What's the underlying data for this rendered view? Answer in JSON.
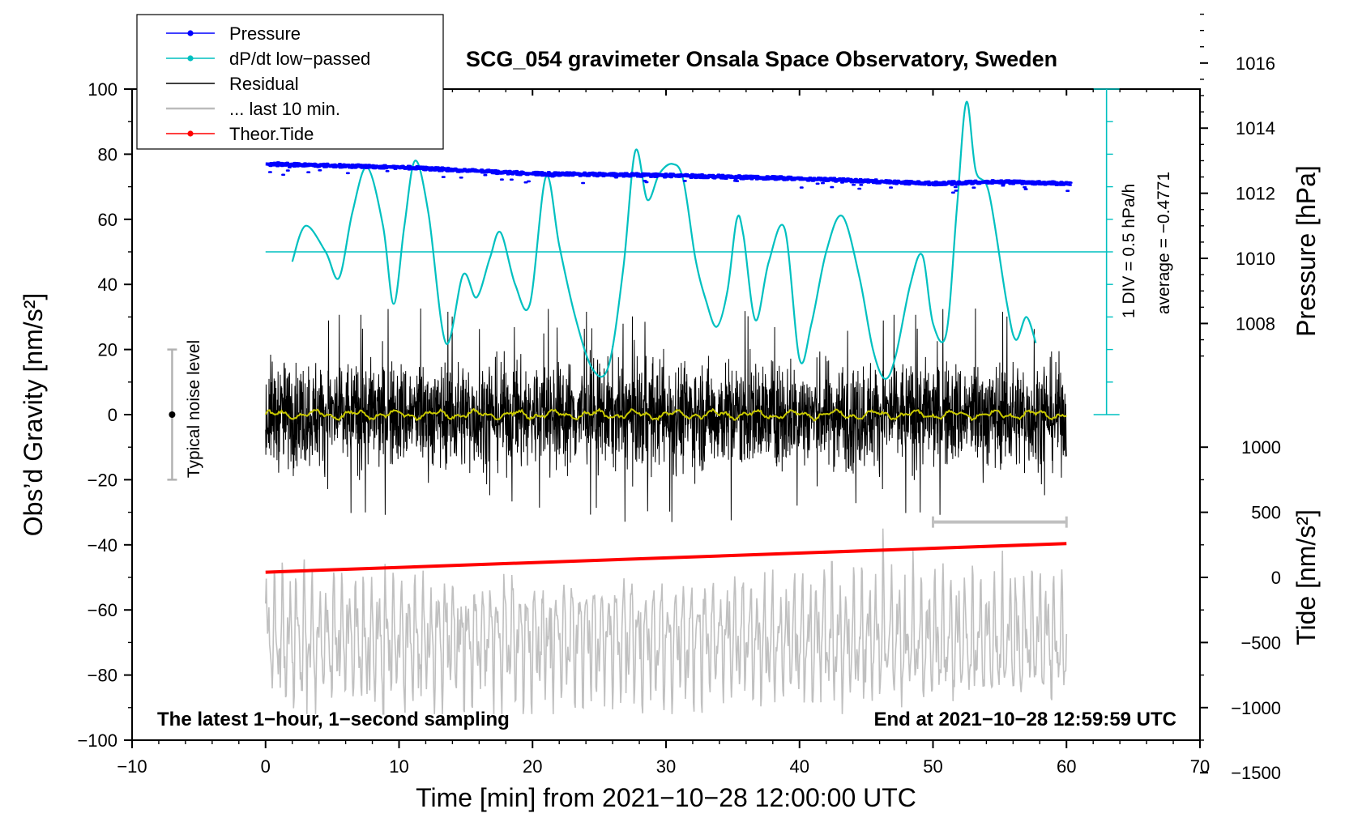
{
  "chart_data": {
    "type": "line",
    "title": "SCG_054 gravimeter Onsala Space Observatory, Sweden",
    "xlabel": "Time [min] from 2021−10−28 12:00:00 UTC",
    "ylabel_left": "Obs’d Gravity [nm/s²]",
    "ylabel_right_top": "Pressure [hPa]",
    "ylabel_right_bottom": "Tide [nm/s²]",
    "xlim": [
      -10,
      70
    ],
    "ylim": [
      -100,
      100
    ],
    "pressure_lim": [
      1000,
      1018
    ],
    "tide_lim": [
      -1500,
      1000
    ],
    "xticks": [
      -10,
      0,
      10,
      20,
      30,
      40,
      50,
      60,
      70
    ],
    "xtick_labels": [
      "−10",
      "0",
      "10",
      "20",
      "30",
      "40",
      "50",
      "60",
      "70"
    ],
    "yticks": [
      -100,
      -80,
      -60,
      -40,
      -20,
      0,
      20,
      40,
      60,
      80,
      100
    ],
    "ytick_labels": [
      "−100",
      "−80",
      "−60",
      "−40",
      "−20",
      "0",
      "20",
      "40",
      "60",
      "80",
      "100"
    ],
    "pressure_ticks": [
      1008,
      1010,
      1012,
      1014,
      1016
    ],
    "pressure_tick_labels": [
      "1008",
      "1010",
      "1012",
      "1014",
      "1016"
    ],
    "tide_ticks": [
      -1500,
      -1000,
      -500,
      0,
      500,
      1000
    ],
    "tide_tick_labels": [
      "−1500",
      "−1000",
      "−500",
      "0",
      "500",
      "1000"
    ],
    "legend": [
      {
        "label": "Pressure",
        "color": "#0000ff",
        "marker": true
      },
      {
        "label": "dP/dt low−passed",
        "color": "#00c0c0",
        "marker": true
      },
      {
        "label": "Residual",
        "color": "#000000",
        "marker": false
      },
      {
        "label": "... last 10 min.",
        "color": "#bbbbbb",
        "marker": false
      },
      {
        "label": "Theor.Tide",
        "color": "#ff0000",
        "marker": true
      }
    ],
    "annotations": {
      "bottom_left": "The latest 1−hour, 1−second sampling",
      "bottom_right": "End at 2021−10−28 12:59:59 UTC",
      "noise_label": "Typical noise level",
      "dpdt_scale": "1 DIV = 0.5 hPa/h",
      "dpdt_average": "average = −0.4771"
    },
    "noise_bar": {
      "x": -7,
      "y_low": -20,
      "y_high": 20,
      "y_mid": 0
    },
    "last10_range": [
      50,
      60
    ],
    "dpdt_reference_level": 50,
    "dpdt_axis": {
      "x": 63,
      "y_from": 0,
      "y_to": 100,
      "divisions": 10
    },
    "pressure": {
      "t": [
        0,
        10,
        20,
        30,
        40,
        50,
        55,
        60
      ],
      "hPa": [
        1012.9,
        1012.8,
        1012.6,
        1012.55,
        1012.45,
        1012.3,
        1012.35,
        1012.3
      ]
    },
    "dpdt": {
      "t": [
        2.0,
        3.0,
        4.5,
        5.5,
        6.5,
        7.6,
        8.8,
        9.6,
        10.4,
        11.2,
        12.2,
        13.5,
        14.8,
        15.8,
        16.8,
        17.6,
        18.7,
        19.8,
        21.0,
        22.0,
        23.2,
        24.5,
        25.7,
        26.8,
        27.7,
        28.6,
        29.5,
        30.5,
        31.3,
        32.2,
        33.0,
        33.8,
        34.6,
        35.3,
        35.8,
        36.7,
        37.7,
        38.9,
        40.0,
        40.9,
        42.0,
        43.2,
        44.5,
        45.5,
        46.4,
        47.2,
        48.3,
        49.2,
        50.0,
        51.0,
        51.8,
        52.5,
        53.2,
        54.2,
        55.5,
        56.2,
        57.0,
        57.7
      ],
      "values": [
        47,
        58,
        50,
        42,
        62,
        76,
        58,
        34,
        58,
        78,
        62,
        22,
        43,
        36,
        48,
        56,
        40,
        34,
        73,
        52,
        30,
        14,
        15,
        45,
        81,
        66,
        74,
        77,
        72,
        48,
        35,
        27,
        38,
        60,
        55,
        29,
        47,
        57,
        17,
        28,
        50,
        61,
        42,
        20,
        11,
        18,
        40,
        49,
        28,
        25,
        64,
        96,
        75,
        68,
        35,
        23,
        30,
        22
      ]
    },
    "residual": {
      "mean": 0,
      "envelope_nms2": 18,
      "spikes_min": -33,
      "spikes_max": 33,
      "t_range": [
        0,
        60
      ]
    },
    "residual_smoothed": {
      "approx_value": 0,
      "range": [
        -2,
        2
      ]
    },
    "last10": {
      "mean": -69,
      "range": [
        -92,
        -35
      ],
      "t_range": [
        0,
        60
      ]
    },
    "theor_tide": {
      "t": [
        0,
        60
      ],
      "nms2": [
        40,
        260
      ]
    }
  }
}
